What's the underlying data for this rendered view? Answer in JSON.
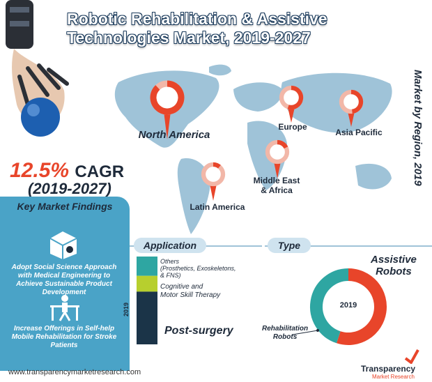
{
  "title": "Robotic Rehabilitation & Assistive Technologies Market, 2019-2027",
  "side_title": "Market by Region, 2019",
  "cagr": {
    "value": "12.5%",
    "label": "CAGR",
    "period": "(2019-2027)"
  },
  "key_findings": {
    "title": "Key Market Findings",
    "items": [
      "Adopt Social Science Approach with Medical Engineering to Achieve Sustainable Product Development",
      "Increase Offerings in Self-help Mobile Rehabilitation for Stroke Patients"
    ]
  },
  "footer": {
    "url": "www.transparencymarketresearch.com",
    "logo_top": "Transparency",
    "logo_bottom": "Market Research"
  },
  "colors": {
    "accent": "#e8452a",
    "teal": "#2ea6a2",
    "lime": "#b7cf2e",
    "navy": "#1b3448",
    "panel": "#4aa3c7",
    "map": "#9fc3d8"
  },
  "chart_data": [
    {
      "type": "pie",
      "title": "Market by Region, 2019",
      "categories": [
        "North America",
        "Europe",
        "Asia Pacific",
        "Middle East & Africa",
        "Latin America"
      ],
      "values": [
        40,
        25,
        22,
        8,
        5
      ]
    },
    {
      "type": "bar",
      "title": "Application",
      "year": "2019",
      "categories": [
        "Others (Prosthetics, Exoskeletons, & FNS)",
        "Cognitive and Motor Skill Therapy",
        "Post-surgery"
      ],
      "values": [
        22,
        18,
        60
      ]
    },
    {
      "type": "pie",
      "title": "Type",
      "center_label": "2019",
      "categories": [
        "Assistive Robots",
        "Rehabilitation Robots"
      ],
      "values": [
        55,
        45
      ]
    }
  ],
  "labels": {
    "application_others_1": "Others",
    "application_others_2": "(Prosthetics, Exoskeletons,",
    "application_others_3": "& FNS)",
    "application_cog_1": "Cognitive and",
    "application_cog_2": "Motor Skill Therapy",
    "application_post": "Post-surgery",
    "type_assist_1": "Assistive",
    "type_assist_2": "Robots",
    "type_rehab_1": "Rehabilitation",
    "type_rehab_2": "Robots",
    "mea_1": "Middle East",
    "mea_2": "& Africa"
  }
}
